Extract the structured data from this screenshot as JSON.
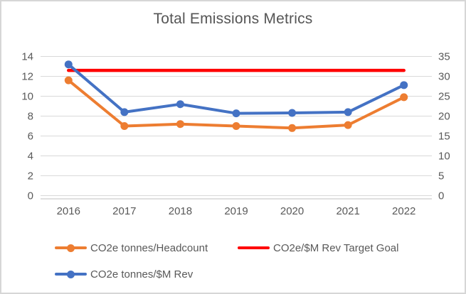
{
  "window": {
    "background": "#ffffff",
    "border_color": "#d6d6d6"
  },
  "chart_data": {
    "type": "line",
    "title": "Total Emissions Metrics",
    "categories": [
      "2016",
      "2017",
      "2018",
      "2019",
      "2020",
      "2021",
      "2022"
    ],
    "series": [
      {
        "name": "CO2e tonnes/Headcount",
        "axis": "left",
        "color": "#ED7D31",
        "markers": true,
        "values": [
          11.6,
          7.0,
          7.2,
          7.0,
          6.8,
          7.1,
          9.9
        ]
      },
      {
        "name": "CO2e/$M Rev Target Goal",
        "axis": "right",
        "color": "#FF0000",
        "markers": false,
        "values": [
          31.5,
          31.5,
          31.5,
          31.5,
          31.5,
          31.5,
          31.5
        ]
      },
      {
        "name": "CO2e tonnes/$M Rev",
        "axis": "right",
        "color": "#4472C4",
        "markers": true,
        "values": [
          33,
          21,
          23,
          20.7,
          20.8,
          21,
          27.8
        ]
      }
    ],
    "left_axis": {
      "min": 0,
      "max": 14,
      "ticks": [
        0,
        2,
        4,
        6,
        8,
        10,
        12,
        14
      ]
    },
    "right_axis": {
      "min": 0,
      "max": 35,
      "ticks": [
        0,
        5,
        10,
        15,
        20,
        25,
        30,
        35
      ]
    },
    "grid": true,
    "legend_position": "bottom"
  },
  "style": {
    "text_color": "#595959",
    "title_color": "#555555",
    "gridline_color": "#d9d9d9",
    "axisline_color": "#bfbfbf"
  }
}
